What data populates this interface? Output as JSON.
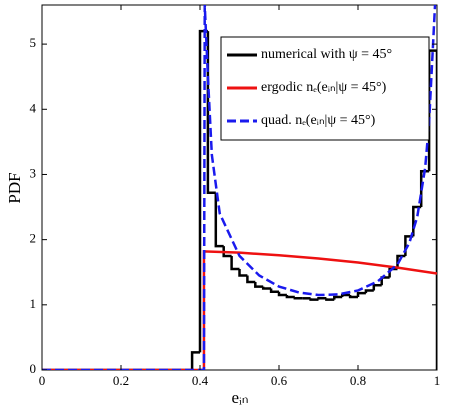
{
  "chart_data": {
    "type": "histogram",
    "name": "numerical with ψ = 45°",
    "color": "#000000",
    "bins": [
      0,
      0.02,
      0.04,
      0.06,
      0.08,
      0.1,
      0.12,
      0.14,
      0.16,
      0.18,
      0.2,
      0.22,
      0.24,
      0.26,
      0.28,
      0.3,
      0.32,
      0.34,
      0.36,
      0.38,
      0.4,
      0.42,
      0.44,
      0.46,
      0.48,
      0.5,
      0.52,
      0.54,
      0.56,
      0.58,
      0.6,
      0.62,
      0.64,
      0.66,
      0.68,
      0.7,
      0.72,
      0.74,
      0.76,
      0.78,
      0.8,
      0.82,
      0.84,
      0.86,
      0.88,
      0.9,
      0.92,
      0.94,
      0.96,
      0.98,
      1
    ],
    "counts": [
      0,
      0,
      0,
      0,
      0,
      0,
      0,
      0,
      0,
      0,
      0,
      0,
      0,
      0,
      0,
      0,
      0,
      0,
      0,
      0.27,
      5.2,
      2.72,
      1.9,
      1.75,
      1.55,
      1.45,
      1.35,
      1.28,
      1.25,
      1.2,
      1.15,
      1.12,
      1.1,
      1.1,
      1.08,
      1.1,
      1.08,
      1.12,
      1.15,
      1.12,
      1.18,
      1.22,
      1.3,
      1.42,
      1.55,
      1.75,
      2.05,
      2.5,
      3.05,
      4.9
    ],
    "series": [
      {
        "name": "ergodic nₑ(eᵢₙ|ψ = 45°)",
        "color": "#ee1111",
        "dash": false,
        "x": [
          0,
          0.41,
          0.41,
          0.5,
          0.6,
          0.7,
          0.8,
          0.9,
          1.0
        ],
        "values": [
          0,
          0,
          1.82,
          1.8,
          1.76,
          1.71,
          1.65,
          1.57,
          1.48
        ]
      },
      {
        "name": "quad. nₑ(eᵢₙ|ψ = 45°)",
        "color": "#1a1aee",
        "dash": true,
        "x": [
          0,
          0.41,
          0.412,
          0.42,
          0.43,
          0.45,
          0.5,
          0.55,
          0.6,
          0.65,
          0.7,
          0.75,
          0.8,
          0.85,
          0.9,
          0.93,
          0.95,
          0.97,
          0.98,
          0.99,
          0.995
        ],
        "values": [
          0,
          0,
          5.6,
          4.5,
          3.3,
          2.4,
          1.75,
          1.45,
          1.28,
          1.19,
          1.15,
          1.16,
          1.22,
          1.36,
          1.62,
          1.95,
          2.35,
          3.1,
          3.8,
          5.0,
          5.6
        ]
      }
    ],
    "xlim": [
      0,
      1
    ],
    "ylim": [
      0,
      5.6
    ],
    "xticks": [
      0,
      0.2,
      0.4,
      0.6,
      0.8,
      1
    ],
    "yticks": [
      0,
      1,
      2,
      3,
      4,
      5
    ],
    "xlabel": "eᵢₙ",
    "ylabel": "PDF",
    "legend": "upper right"
  }
}
